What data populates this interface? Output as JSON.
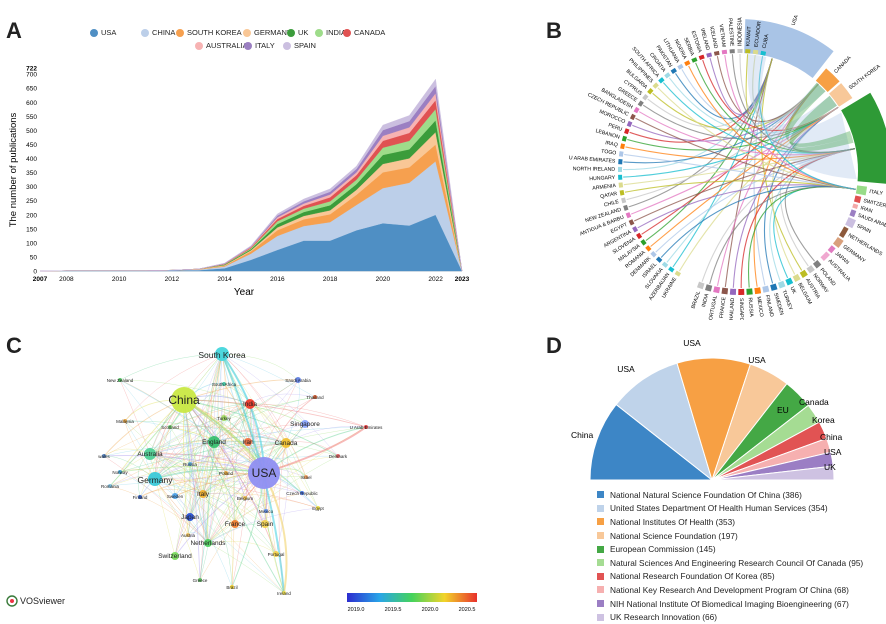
{
  "panels": {
    "a": "A",
    "b": "B",
    "c": "C",
    "d": "D"
  },
  "chart_data": [
    {
      "type": "area",
      "panel": "A",
      "title": "",
      "xlabel": "Year",
      "ylabel": "The number of publications",
      "x": [
        2007,
        2008,
        2009,
        2010,
        2011,
        2012,
        2013,
        2014,
        2015,
        2016,
        2017,
        2018,
        2019,
        2020,
        2021,
        2022,
        2023
      ],
      "x_ticks": [
        "2007",
        "2008",
        "2010",
        "2012",
        "2014",
        "2016",
        "2018",
        "2020",
        "2022",
        "2023"
      ],
      "y_ticks": [
        "0",
        "50",
        "100",
        "150",
        "200",
        "250",
        "300",
        "350",
        "400",
        "450",
        "500",
        "550",
        "600",
        "650",
        "700",
        "722"
      ],
      "ylim": [
        0,
        722
      ],
      "stacked": true,
      "series": [
        {
          "name": "USA",
          "color": "#4f8fc4",
          "values": [
            0,
            1,
            1,
            1,
            1,
            2,
            3,
            10,
            40,
            75,
            108,
            108,
            145,
            170,
            162,
            200,
            0
          ]
        },
        {
          "name": "CHINA",
          "color": "#bccfe9",
          "values": [
            0,
            0,
            0,
            0,
            0,
            1,
            2,
            6,
            22,
            50,
            52,
            66,
            90,
            125,
            152,
            190,
            0
          ]
        },
        {
          "name": "SOUTH KOREA",
          "color": "#f6a04f",
          "values": [
            0,
            0,
            0,
            0,
            0,
            0,
            1,
            3,
            8,
            20,
            24,
            28,
            36,
            56,
            55,
            60,
            0
          ]
        },
        {
          "name": "GERMANY",
          "color": "#f9c796",
          "values": [
            0,
            0,
            0,
            0,
            0,
            0,
            1,
            2,
            4,
            10,
            12,
            14,
            18,
            30,
            32,
            44,
            0
          ]
        },
        {
          "name": "UK",
          "color": "#3b9c3b",
          "values": [
            0,
            0,
            0,
            0,
            0,
            0,
            0,
            2,
            4,
            12,
            14,
            18,
            20,
            32,
            32,
            42,
            0
          ]
        },
        {
          "name": "INDIA",
          "color": "#9edc8a",
          "values": [
            0,
            0,
            0,
            0,
            0,
            0,
            0,
            1,
            3,
            10,
            12,
            14,
            16,
            26,
            30,
            40,
            0
          ]
        },
        {
          "name": "CANADA",
          "color": "#e05252",
          "values": [
            0,
            0,
            0,
            0,
            0,
            0,
            0,
            1,
            3,
            8,
            10,
            14,
            16,
            24,
            28,
            32,
            0
          ]
        },
        {
          "name": "AUSTRALIA",
          "color": "#f7b3b3",
          "values": [
            0,
            0,
            0,
            0,
            0,
            0,
            0,
            1,
            2,
            6,
            8,
            10,
            10,
            18,
            20,
            24,
            0
          ]
        },
        {
          "name": "ITALY",
          "color": "#9b7fc2",
          "values": [
            0,
            0,
            0,
            0,
            0,
            0,
            0,
            1,
            2,
            6,
            8,
            10,
            12,
            20,
            22,
            26,
            0
          ]
        },
        {
          "name": "SPAIN",
          "color": "#cbbfe0",
          "values": [
            0,
            0,
            0,
            0,
            0,
            0,
            0,
            1,
            2,
            6,
            8,
            10,
            10,
            18,
            20,
            24,
            0
          ]
        }
      ]
    },
    {
      "type": "chord",
      "panel": "B",
      "countries_right": [
        "USA",
        "CANADA",
        "SOUTH KOREA",
        "CHINA",
        "ITALY",
        "SWITZERLAND",
        "IRAN",
        "SAUDI ARABIA",
        "SPAIN",
        "NETHERLANDS",
        "GERMANY",
        "JAPAN",
        "AUSTRALIA",
        "POLAND",
        "NORWAY",
        "AUSTRIA",
        "BELGIUM",
        "UK",
        "TURKEY",
        "SWEDEN",
        "FINLAND",
        "MEXICO",
        "RUSSIA",
        "SINGAPORE",
        "THAILAND",
        "FRANCE",
        "PORTUGAL",
        "INDIA",
        "BRAZIL"
      ],
      "countries_left": [
        "UKRAINE",
        "AZERBAIJAN",
        "SLOVAKIA",
        "ISRAEL",
        "DENMARK",
        "ROMANIA",
        "MALAYSIA",
        "SLOVENIA",
        "ARGENTINA",
        "EGYPT",
        "ANTIGUA & BARBU",
        "NEW ZEALAND",
        "CHILE",
        "QATAR",
        "ARMENIA",
        "HUNGARY",
        "NORTH IRELAND",
        "U ARAB EMIRATES",
        "TOGO",
        "IRAQ",
        "LEBANON",
        "PERU",
        "MOROCCO",
        "CZECH REPUBLIC",
        "BANGLADESH",
        "GREECE",
        "CYPRUS",
        "BULGARIA",
        "PHILIPPINES",
        "SOUTH AFRICA",
        "CROATIA",
        "PAKISTAN",
        "LITHUANIA",
        "NIGERIA",
        "SERBIA",
        "ESTONIA",
        "IRELAND",
        "ICELAND",
        "VIETNAM",
        "PALESTINE",
        "INDONESIA",
        "KUWAIT",
        "ECUADOR",
        "CUBA"
      ]
    },
    {
      "type": "network",
      "panel": "C",
      "nodes": [
        "South Korea",
        "China",
        "USA",
        "Australia",
        "Germany",
        "England",
        "Canada",
        "Singapore",
        "Netherlands",
        "Switzerland",
        "Spain",
        "Portugal",
        "France",
        "Italy",
        "Japan",
        "Sweden",
        "Iran",
        "India",
        "Turkey",
        "Scotland",
        "Malaysia",
        "New Zealand",
        "South Africa",
        "Saudi Arabia",
        "Thailand",
        "U Arab Emirates",
        "Denmark",
        "Israel",
        "Czech Republic",
        "Egypt",
        "Mexico",
        "Belgium",
        "Poland",
        "Russia",
        "Norway",
        "Romania",
        "Finland",
        "wales",
        "Greece",
        "Brazil",
        "Ireland",
        "Austria"
      ],
      "brand": "VOSviewer",
      "colorbar_ticks": [
        "2019.0",
        "2019.5",
        "2020.0",
        "2020.5"
      ]
    },
    {
      "type": "pie",
      "panel": "D",
      "slice_labels": [
        "China",
        "USA",
        "USA",
        "USA",
        "EU",
        "Canada",
        "Korea",
        "China",
        "USA",
        "UK"
      ],
      "categories": [
        "National Natural Science Foundation Of China",
        "United States Department Of Health Human Services",
        "National Institutes Of Health",
        "National Science Foundation",
        "European Commission",
        "Natural Sciences And Engineering Research Council Of Canada",
        "National Research Foundation Of Korea",
        "National Key Research And Development Program Of China",
        "NIH National Institute Of Biomedical Imaging Bioengineering",
        "UK Research Innovation"
      ],
      "values": [
        386,
        354,
        353,
        197,
        145,
        95,
        85,
        68,
        67,
        66
      ],
      "legend": [
        "National Natural Science Foundation Of China (386)",
        "United States Department Of Health Human Services (354)",
        "National Institutes Of Health (353)",
        "National Science Foundation (197)",
        "European Commission (145)",
        "Natural Sciences And Engineering Research Council Of Canada (95)",
        "National Research Foundation Of Korea (85)",
        "National Key Research And Development Program Of China (68)",
        "NIH National Institute Of Biomedical Imaging Bioengineering (67)",
        "UK Research Innovation (66)"
      ],
      "colors": [
        "#3d86c6",
        "#bfd3ea",
        "#f7a044",
        "#f8c899",
        "#44a845",
        "#a5dc93",
        "#e15353",
        "#f6b0b0",
        "#9b7ec4",
        "#cec2e2"
      ]
    }
  ]
}
